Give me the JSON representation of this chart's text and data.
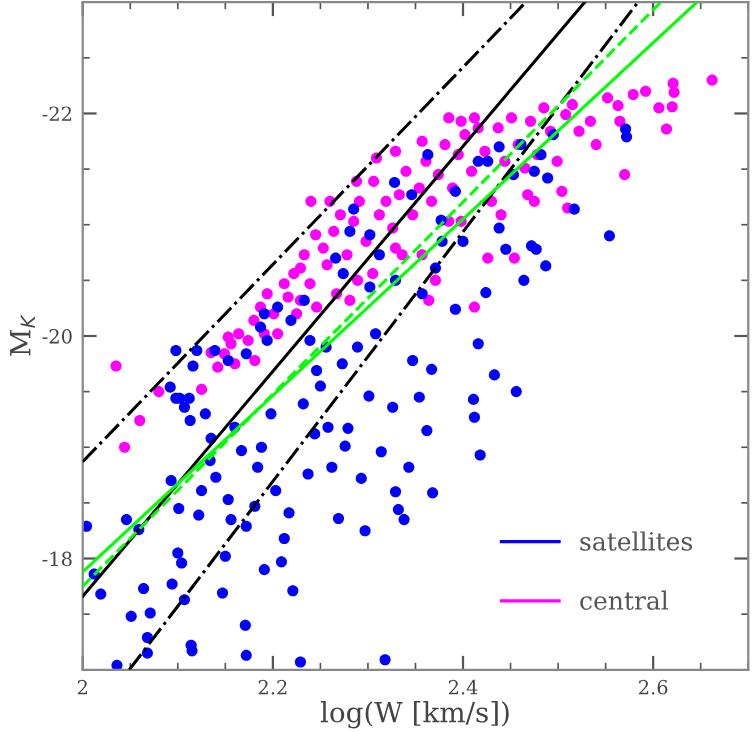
{
  "chart_data": {
    "type": "scatter",
    "xlabel": "log(W [km/s])",
    "ylabel": "M$_{K}$",
    "xlim": [
      2,
      2.7
    ],
    "ylim": [
      -17,
      -23
    ],
    "xticks": [
      2,
      2.2,
      2.4,
      2.6
    ],
    "yticks": [
      -22,
      -20,
      -18
    ],
    "grid": false,
    "legend": "bottom right",
    "series": [
      {
        "name": "central",
        "color": "#ff00ff",
        "marker": "circle",
        "x": [
          2.035,
          2.044,
          2.06,
          2.08,
          2.125,
          2.135,
          2.142,
          2.149,
          2.156,
          2.16,
          2.164,
          2.174,
          2.18,
          2.187,
          2.194,
          2.201,
          2.212,
          2.216,
          2.222,
          2.229,
          2.233,
          2.239,
          2.245,
          2.253,
          2.257,
          2.264,
          2.271,
          2.278,
          2.285,
          2.291,
          2.298,
          2.306,
          2.312,
          2.319,
          2.326,
          2.333,
          2.34,
          2.347,
          2.354,
          2.361,
          2.367,
          2.374,
          2.381,
          2.389,
          2.395,
          2.402,
          2.409,
          2.416,
          2.423,
          2.43,
          2.437,
          2.444,
          2.451,
          2.458,
          2.465,
          2.471,
          2.478,
          2.485,
          2.492,
          2.499,
          2.504,
          2.508,
          2.515,
          2.522,
          2.534,
          2.54,
          2.552,
          2.565,
          2.57,
          2.579,
          2.592,
          2.606,
          2.614,
          2.62,
          2.621,
          2.622,
          2.662,
          2.563,
          2.51,
          2.454,
          2.426,
          2.412,
          2.364,
          2.329,
          2.357,
          2.305,
          2.289,
          2.267,
          2.246,
          2.225,
          2.205,
          2.181,
          2.309,
          2.329,
          2.357,
          2.385,
          2.398,
          2.412,
          2.385,
          2.398,
          2.44,
          2.468,
          2.475,
          2.26,
          2.288,
          2.24,
          2.336,
          2.371,
          2.281,
          2.229,
          2.191,
          2.153
        ],
        "values": [
          -19.73,
          -19.0,
          -19.24,
          -19.5,
          -19.52,
          -19.85,
          -19.72,
          -19.84,
          -19.93,
          -19.75,
          -20.02,
          -19.96,
          -20.14,
          -20.26,
          -20.38,
          -20.2,
          -20.47,
          -20.35,
          -20.56,
          -20.61,
          -20.73,
          -20.47,
          -20.91,
          -20.79,
          -20.64,
          -20.94,
          -21.09,
          -20.73,
          -21.03,
          -21.21,
          -20.85,
          -21.39,
          -21.09,
          -21.21,
          -20.97,
          -21.27,
          -21.48,
          -21.09,
          -21.33,
          -21.57,
          -21.21,
          -21.45,
          -21.72,
          -21.33,
          -21.63,
          -21.81,
          -21.48,
          -21.87,
          -21.66,
          -21.21,
          -21.87,
          -21.57,
          -21.96,
          -21.72,
          -21.51,
          -21.93,
          -21.63,
          -22.05,
          -21.84,
          -21.57,
          -21.3,
          -21.99,
          -22.08,
          -21.84,
          -21.93,
          -21.72,
          -22.14,
          -21.93,
          -21.45,
          -22.17,
          -22.2,
          -22.05,
          -21.86,
          -22.06,
          -22.27,
          -22.19,
          -22.3,
          -22.07,
          -21.15,
          -20.7,
          -20.7,
          -20.26,
          -20.32,
          -20.79,
          -20.73,
          -20.56,
          -20.5,
          -20.38,
          -20.26,
          -20.2,
          -20.02,
          -19.78,
          -21.6,
          -21.66,
          -21.75,
          -21.96,
          -21.93,
          -21.96,
          -21.03,
          -21.03,
          -21.09,
          -21.27,
          -21.21,
          -21.21,
          -21.39,
          -21.21,
          -20.73,
          -20.5,
          -20.32,
          -20.32,
          -20.02,
          -19.99
        ]
      },
      {
        "name": "satellites",
        "color": "#0000ff",
        "marker": "circle",
        "x": [
          2.004,
          2.012,
          2.019,
          2.036,
          2.046,
          2.059,
          2.051,
          2.064,
          2.068,
          2.068,
          2.071,
          2.092,
          2.093,
          2.094,
          2.098,
          2.098,
          2.102,
          2.107,
          2.101,
          2.1,
          2.104,
          2.107,
          2.112,
          2.113,
          2.114,
          2.115,
          2.116,
          2.12,
          2.125,
          2.122,
          2.129,
          2.134,
          2.135,
          2.14,
          2.147,
          2.15,
          2.153,
          2.156,
          2.16,
          2.167,
          2.171,
          2.172,
          2.172,
          2.181,
          2.184,
          2.188,
          2.191,
          2.194,
          2.191,
          2.198,
          2.203,
          2.209,
          2.212,
          2.217,
          2.221,
          2.229,
          2.232,
          2.237,
          2.244,
          2.246,
          2.25,
          2.256,
          2.258,
          2.262,
          2.269,
          2.273,
          2.276,
          2.279,
          2.289,
          2.293,
          2.297,
          2.301,
          2.308,
          2.314,
          2.318,
          2.326,
          2.329,
          2.332,
          2.338,
          2.343,
          2.347,
          2.354,
          2.362,
          2.367,
          2.368,
          2.392,
          2.411,
          2.412,
          2.416,
          2.418,
          2.424,
          2.433,
          2.456,
          2.464,
          2.472,
          2.477,
          2.487,
          2.517,
          2.554,
          2.571,
          2.572,
          2.438,
          2.445,
          2.266,
          2.281,
          2.285,
          2.302,
          2.312,
          2.328,
          2.346,
          2.363,
          2.377,
          2.392,
          2.4,
          2.416,
          2.426,
          2.438,
          2.453,
          2.461,
          2.475,
          2.482,
          2.489,
          2.495,
          2.233,
          2.219,
          2.205,
          2.187,
          2.172,
          2.153,
          2.139,
          2.239,
          2.302,
          2.329,
          2.357,
          2.371,
          2.378,
          2.274
        ],
        "values": [
          -18.29,
          -17.86,
          -17.68,
          -17.04,
          -18.35,
          -18.26,
          -17.48,
          -17.73,
          -17.29,
          -17.15,
          -17.51,
          -19.54,
          -18.7,
          -17.77,
          -19.87,
          -19.44,
          -19.44,
          -19.36,
          -18.45,
          -18.05,
          -17.96,
          -17.63,
          -19.44,
          -19.24,
          -17.22,
          -17.17,
          -19.73,
          -19.87,
          -18.61,
          -18.39,
          -19.3,
          -18.88,
          -19.08,
          -18.73,
          -17.69,
          -18.02,
          -18.53,
          -18.35,
          -19.18,
          -18.97,
          -17.4,
          -17.13,
          -18.29,
          -18.47,
          -18.82,
          -19.0,
          -17.9,
          -19.96,
          -20.2,
          -19.3,
          -18.61,
          -17.97,
          -18.18,
          -18.41,
          -17.71,
          -17.07,
          -19.39,
          -18.76,
          -19.12,
          -19.69,
          -19.55,
          -19.9,
          -19.18,
          -18.82,
          -18.36,
          -19.75,
          -19.01,
          -19.17,
          -19.9,
          -18.72,
          -18.25,
          -19.46,
          -20.02,
          -18.96,
          -17.09,
          -19.36,
          -18.6,
          -18.44,
          -18.35,
          -18.82,
          -19.78,
          -19.45,
          -19.15,
          -19.7,
          -18.59,
          -20.24,
          -19.43,
          -19.27,
          -19.93,
          -18.93,
          -20.39,
          -19.65,
          -19.5,
          -20.5,
          -20.81,
          -20.78,
          -20.63,
          -21.14,
          -20.9,
          -21.86,
          -21.79,
          -20.97,
          -20.78,
          -20.7,
          -20.94,
          -21.14,
          -20.91,
          -20.73,
          -21.38,
          -21.27,
          -21.63,
          -21.04,
          -21.3,
          -20.85,
          -21.57,
          -21.57,
          -21.7,
          -21.45,
          -21.72,
          -21.48,
          -21.63,
          -21.42,
          -21.81,
          -20.32,
          -20.14,
          -20.26,
          -20.08,
          -19.84,
          -19.78,
          -19.87,
          -19.96,
          -20.44,
          -20.5,
          -20.38,
          -20.61,
          -20.85,
          -20.56
        ]
      },
      {
        "type": "line",
        "color": "#000000",
        "line_style": "dashdot",
        "x": [
          2,
          2.466
        ],
        "values": [
          -18.87,
          -23
        ]
      },
      {
        "type": "line",
        "color": "#000000",
        "line_style": "solid",
        "x": [
          2,
          2.528
        ],
        "values": [
          -17.66,
          -23
        ]
      },
      {
        "type": "line",
        "color": "#000000",
        "line_style": "dashdot",
        "x": [
          2.049,
          2.584
        ],
        "values": [
          -17,
          -23
        ]
      },
      {
        "type": "line",
        "color": "#00ff00",
        "line_style": "dashed",
        "x": [
          2,
          2.608
        ],
        "values": [
          -17.75,
          -23
        ]
      },
      {
        "type": "line",
        "color": "#00ff00",
        "line_style": "solid",
        "x": [
          2,
          2.646
        ],
        "values": [
          -17.88,
          -23
        ]
      }
    ]
  }
}
